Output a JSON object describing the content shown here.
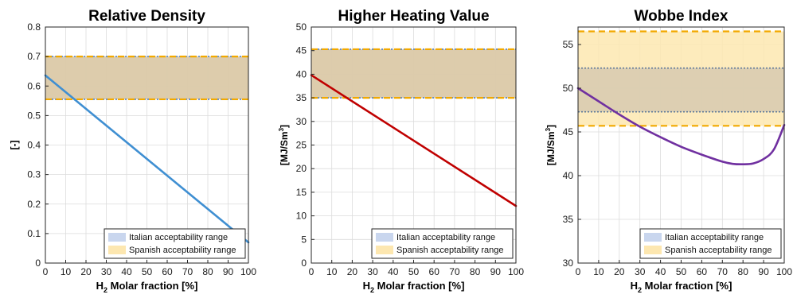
{
  "chart_data": [
    {
      "type": "line",
      "title": "Relative Density",
      "xlabel_main": "H",
      "xlabel_sub": "2",
      "xlabel_rest": " Molar fraction [%]",
      "ylabel": "[-]",
      "ylabel_sup": "",
      "xlim": [
        0,
        100
      ],
      "ylim": [
        0,
        0.8
      ],
      "xticks": [
        0,
        10,
        20,
        30,
        40,
        50,
        60,
        70,
        80,
        90,
        100
      ],
      "yticks": [
        0,
        0.1,
        0.2,
        0.3,
        0.4,
        0.5,
        0.6,
        0.7,
        0.8
      ],
      "ytick_labels": [
        "0",
        "0.1",
        "0.2",
        "0.3",
        "0.4",
        "0.5",
        "0.6",
        "0.7",
        "0.8"
      ],
      "grid": true,
      "legend_position": "bottom-right",
      "bands": [
        {
          "name": "Italian acceptability range",
          "range": [
            0.555,
            0.7
          ],
          "fill": "#c9d6ee",
          "edge": "#4f7fc4",
          "style": "dotted"
        },
        {
          "name": "Spanish acceptability range",
          "range": [
            0.555,
            0.7
          ],
          "fill": "#fde7b0",
          "edge": "#f2a900",
          "style": "dashed"
        }
      ],
      "series": [
        {
          "color": "#3f8fd2",
          "x": [
            0,
            100
          ],
          "y": [
            0.636,
            0.07
          ]
        }
      ]
    },
    {
      "type": "line",
      "title": "Higher Heating Value",
      "xlabel_main": "H",
      "xlabel_sub": "2",
      "xlabel_rest": " Molar fraction [%]",
      "ylabel": "[MJ/Sm",
      "ylabel_sup": "3",
      "ylabel_end": "]",
      "xlim": [
        0,
        100
      ],
      "ylim": [
        0,
        50
      ],
      "xticks": [
        0,
        10,
        20,
        30,
        40,
        50,
        60,
        70,
        80,
        90,
        100
      ],
      "yticks": [
        0,
        5,
        10,
        15,
        20,
        25,
        30,
        35,
        40,
        45,
        50
      ],
      "ytick_labels": [
        "0",
        "5",
        "10",
        "15",
        "20",
        "25",
        "30",
        "35",
        "40",
        "45",
        "50"
      ],
      "grid": true,
      "legend_position": "bottom-right",
      "bands": [
        {
          "name": "Italian acceptability range",
          "range": [
            35,
            45.3
          ],
          "fill": "#c9d6ee",
          "edge": "#4f7fc4",
          "style": "dotted"
        },
        {
          "name": "Spanish acceptability range",
          "range": [
            35,
            45.3
          ],
          "fill": "#fde7b0",
          "edge": "#f2a900",
          "style": "dashed"
        }
      ],
      "series": [
        {
          "color": "#c00000",
          "x": [
            0,
            100
          ],
          "y": [
            39.8,
            12.1
          ]
        }
      ]
    },
    {
      "type": "line",
      "title": "Wobbe Index",
      "xlabel_main": "H",
      "xlabel_sub": "2",
      "xlabel_rest": " Molar fraction [%]",
      "ylabel": "[MJ/Sm",
      "ylabel_sup": "3",
      "ylabel_end": "]",
      "xlim": [
        0,
        100
      ],
      "ylim": [
        30,
        57
      ],
      "xticks": [
        0,
        10,
        20,
        30,
        40,
        50,
        60,
        70,
        80,
        90,
        100
      ],
      "yticks": [
        30,
        35,
        40,
        45,
        50,
        55
      ],
      "ytick_labels": [
        "30",
        "35",
        "40",
        "45",
        "50",
        "55"
      ],
      "grid": true,
      "legend_position": "bottom-right",
      "bands": [
        {
          "name": "Spanish acceptability range",
          "range": [
            45.7,
            56.5
          ],
          "fill": "#fde7b0",
          "edge": "#f2a900",
          "style": "dashed"
        },
        {
          "name": "Italian acceptability range",
          "range": [
            47.3,
            52.3
          ],
          "fill": "#d7cab0",
          "edge": "#5f7a9a",
          "style": "dotted"
        }
      ],
      "series": [
        {
          "color": "#7030a0",
          "x": [
            0,
            10,
            20,
            30,
            40,
            50,
            60,
            70,
            75,
            80,
            85,
            90,
            95,
            100
          ],
          "y": [
            50.0,
            48.5,
            47.0,
            45.6,
            44.4,
            43.3,
            42.4,
            41.6,
            41.35,
            41.3,
            41.4,
            41.9,
            43.0,
            45.8
          ]
        }
      ]
    }
  ],
  "legend": {
    "italian": "Italian acceptability range",
    "spanish": "Spanish acceptability range",
    "italian_color": "#c9d6ee",
    "spanish_color": "#fde7b0"
  }
}
